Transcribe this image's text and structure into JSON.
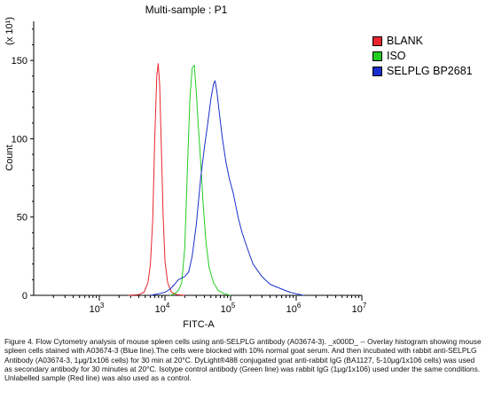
{
  "chart_data": {
    "type": "line",
    "title": "Multi-sample : P1",
    "xlabel": "FITC-A",
    "ylabel": "Count",
    "y_multiplier_label": "(x 10¹)",
    "x_scale": "log",
    "xlim": [
      100,
      10000000
    ],
    "ylim": [
      0,
      175
    ],
    "x_ticks": [
      {
        "value": 1000,
        "base": "10",
        "exp": "3"
      },
      {
        "value": 10000,
        "base": "10",
        "exp": "4"
      },
      {
        "value": 100000,
        "base": "10",
        "exp": "5"
      },
      {
        "value": 1000000,
        "base": "10",
        "exp": "6"
      },
      {
        "value": 10000000,
        "base": "10",
        "exp": "7"
      }
    ],
    "y_ticks": [
      0,
      50,
      100,
      150
    ],
    "grid": false,
    "legend_position": "right",
    "series": [
      {
        "name": "BLANK",
        "color": "#e8262d",
        "points": [
          [
            2800,
            0
          ],
          [
            4000,
            0.5
          ],
          [
            4800,
            2
          ],
          [
            5500,
            8
          ],
          [
            6000,
            20
          ],
          [
            6500,
            48
          ],
          [
            7000,
            100
          ],
          [
            7500,
            140
          ],
          [
            7900,
            148
          ],
          [
            8300,
            135
          ],
          [
            8800,
            95
          ],
          [
            9400,
            50
          ],
          [
            10000,
            22
          ],
          [
            11000,
            8
          ],
          [
            12500,
            2
          ],
          [
            15000,
            0.5
          ],
          [
            20000,
            0
          ]
        ]
      },
      {
        "name": "ISO",
        "color": "#22cc22",
        "points": [
          [
            12000,
            0
          ],
          [
            14000,
            1
          ],
          [
            16000,
            3
          ],
          [
            18000,
            8
          ],
          [
            20000,
            30
          ],
          [
            22000,
            80
          ],
          [
            24000,
            125
          ],
          [
            26000,
            145
          ],
          [
            28000,
            147
          ],
          [
            30000,
            130
          ],
          [
            32000,
            110
          ],
          [
            35000,
            85
          ],
          [
            38000,
            60
          ],
          [
            42000,
            35
          ],
          [
            47000,
            18
          ],
          [
            55000,
            8
          ],
          [
            65000,
            3
          ],
          [
            80000,
            1
          ],
          [
            100000,
            0
          ]
        ]
      },
      {
        "name": "SELPLG BP2681",
        "color": "#1a2fcc",
        "points": [
          [
            6000,
            0
          ],
          [
            8000,
            1
          ],
          [
            10000,
            2
          ],
          [
            12000,
            4
          ],
          [
            14000,
            7
          ],
          [
            16000,
            10
          ],
          [
            20000,
            12
          ],
          [
            23000,
            15
          ],
          [
            26000,
            25
          ],
          [
            30000,
            45
          ],
          [
            35000,
            75
          ],
          [
            40000,
            95
          ],
          [
            45000,
            110
          ],
          [
            50000,
            125
          ],
          [
            55000,
            135
          ],
          [
            58000,
            137
          ],
          [
            62000,
            130
          ],
          [
            68000,
            115
          ],
          [
            75000,
            100
          ],
          [
            85000,
            85
          ],
          [
            95000,
            75
          ],
          [
            110000,
            65
          ],
          [
            130000,
            50
          ],
          [
            150000,
            40
          ],
          [
            180000,
            30
          ],
          [
            220000,
            20
          ],
          [
            300000,
            12
          ],
          [
            400000,
            7
          ],
          [
            600000,
            4
          ],
          [
            800000,
            2
          ],
          [
            1000000,
            1
          ],
          [
            1300000,
            0
          ]
        ]
      }
    ]
  },
  "caption": "Figure 4. Flow Cytometry analysis of mouse spleen cells using anti-SELPLG antibody (A03674-3). _x000D_ -- Overlay histogram showing mouse spleen cells stained with A03674-3 (Blue line).The cells were blocked with 10% normal goat serum. And then incubated with rabbit anti-SELPLG Antibody (A03674-3, 1μg/1x106 cells) for 30 min at 20°C. DyLight®488 conjugated goat anti-rabbit IgG (BA1127, 5-10μg/1x106 cells) was used as secondary antibody for 30 minutes at 20°C. Isotype control antibody (Green line) was rabbit IgG (1μg/1x106) used under the same conditions. Unlabelled sample (Red line) was also used as a control."
}
